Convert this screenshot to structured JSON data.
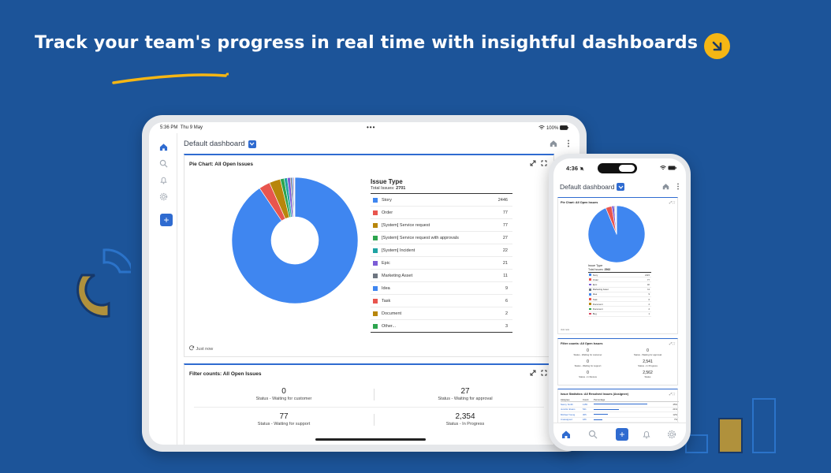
{
  "banner": {
    "headline": "Track your team's progress in real time with insightful dashboards",
    "arrow_icon": "arrow-down-right-icon",
    "accent": "#f5b614"
  },
  "tablet": {
    "status": {
      "time": "5:36 PM",
      "date": "Thu 9 May",
      "dots": "•••",
      "battery": "100%"
    },
    "header": {
      "title": "Default dashboard"
    },
    "rail": [
      "home-icon",
      "search-icon",
      "bell-icon",
      "gear-icon"
    ],
    "add_label": "+",
    "pie_card": {
      "title": "Pie Chart: All Open Issues",
      "legend_title": "Issue Type",
      "total_label": "Total Issues:",
      "total_value": "2701",
      "footer": "Just now"
    },
    "filter_card": {
      "title": "Filter counts: All Open Issues",
      "cells": [
        {
          "count": "0",
          "label": "Status - Waiting for customer"
        },
        {
          "count": "27",
          "label": "Status - Waiting for approval"
        },
        {
          "count": "77",
          "label": "Status - Waiting for support"
        },
        {
          "count": "2,354",
          "label": "Status - In Progress"
        }
      ]
    }
  },
  "phone": {
    "status": {
      "time": "4:36"
    },
    "header": {
      "title": "Default dashboard"
    },
    "pie_card": {
      "title": "Pie Chart: All Open Issues",
      "legend_title": "Issue Type",
      "total_label": "Total Issues:",
      "total_value": "2562",
      "rows": [
        {
          "label": "Story",
          "value": "2115",
          "color": "#3f86f0"
        },
        {
          "label": "Order",
          "value": "77",
          "color": "#e8554e"
        },
        {
          "label": "Epic",
          "value": "32",
          "color": "#7c5cd6"
        },
        {
          "label": "Marketing Asset",
          "value": "11",
          "color": "#6e7681"
        },
        {
          "label": "Idea",
          "value": "9",
          "color": "#3f86f0"
        },
        {
          "label": "Task",
          "value": "6",
          "color": "#e8554e"
        },
        {
          "label": "Document",
          "value": "2",
          "color": "#b8860b"
        },
        {
          "label": "Document",
          "value": "2",
          "color": "#2da44e"
        },
        {
          "label": "Bug",
          "value": "1",
          "color": "#d9465f"
        }
      ],
      "footer": "Just now"
    },
    "filter_card": {
      "title": "Filter counts: All Open Issues",
      "cells": [
        {
          "count": "0",
          "label": "Status - Waiting for customer"
        },
        {
          "count": "0",
          "label": "Status - Waiting for approval"
        },
        {
          "count": "0",
          "label": "Status - Waiting for support"
        },
        {
          "count": "2,541",
          "label": "Status - In Progress"
        },
        {
          "count": "0",
          "label": "Status - In Review"
        },
        {
          "count": "2,562",
          "label": "Status"
        }
      ]
    },
    "stats_card": {
      "title": "Issue Statistics: All Resolved Issues (Assignee)",
      "head": [
        "Assignee",
        "Count",
        "Percentage"
      ],
      "rows": [
        {
          "name": "Nancy Smith",
          "count": "1155",
          "pct": "45%",
          "frac": 0.45
        },
        {
          "name": "Jennifer Evans",
          "count": "541",
          "pct": "21%",
          "frac": 0.21
        },
        {
          "name": "Michael Young",
          "count": "305",
          "pct": "12%",
          "frac": 0.12
        },
        {
          "name": "Unassigned",
          "count": "186",
          "pct": "7%",
          "frac": 0.07
        },
        {
          "name": "Mark Richardson",
          "count": "87",
          "pct": "3%",
          "frac": 0.03
        }
      ]
    },
    "tabs": [
      "home-icon",
      "search-icon",
      "add-icon",
      "bell-icon",
      "gear-icon"
    ],
    "add_label": "+"
  },
  "chart_data": {
    "type": "pie",
    "title": "Pie Chart: All Open Issues",
    "categories": [
      "Story",
      "Order",
      "[System] Service request",
      "[System] Service request with approvals",
      "[System] Incident",
      "Epic",
      "Marketing Asset",
      "Idea",
      "Task",
      "Document",
      "Other..."
    ],
    "values": [
      2446,
      77,
      77,
      27,
      22,
      21,
      11,
      9,
      6,
      2,
      3
    ],
    "colors": [
      "#3f86f0",
      "#e8554e",
      "#b8860b",
      "#2da44e",
      "#1fa3a3",
      "#7c5cd6",
      "#6e7681",
      "#3f86f0",
      "#e8554e",
      "#b8860b",
      "#2da44e"
    ],
    "donut": true,
    "legend": "right"
  }
}
